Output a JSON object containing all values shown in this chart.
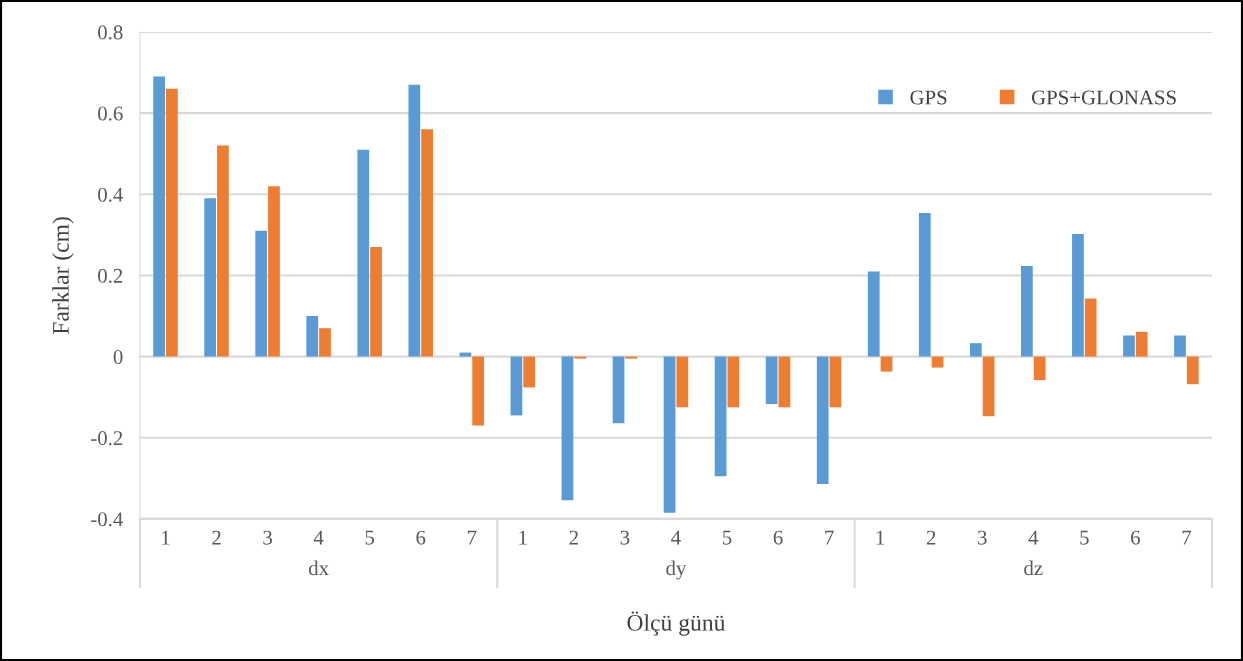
{
  "chart_data": {
    "type": "bar",
    "ylabel": "Farklar (cm)",
    "xlabel": "Ölçü günü",
    "categories": [
      "1",
      "2",
      "3",
      "4",
      "5",
      "6",
      "7",
      "1",
      "2",
      "3",
      "4",
      "5",
      "6",
      "7",
      "1",
      "2",
      "3",
      "4",
      "5",
      "6",
      "7"
    ],
    "annotations": [
      "dx",
      "dy",
      "dz"
    ],
    "series": [
      {
        "name": "GPS",
        "color": "#5b9bd5",
        "values": [
          0.69,
          0.39,
          0.31,
          0.1,
          0.51,
          0.67,
          0.01,
          -0.145,
          -0.354,
          -0.164,
          -0.385,
          -0.295,
          -0.117,
          -0.314,
          0.21,
          0.354,
          0.033,
          0.223,
          0.302,
          0.052,
          0.052
        ]
      },
      {
        "name": "GPS+GLONASS",
        "color": "#ed7d31",
        "values": [
          0.66,
          0.52,
          0.42,
          0.07,
          0.27,
          0.56,
          -0.17,
          -0.076,
          -0.005,
          -0.005,
          -0.125,
          -0.125,
          -0.125,
          -0.125,
          -0.037,
          -0.027,
          -0.147,
          -0.058,
          0.143,
          0.061,
          -0.068
        ]
      }
    ],
    "ylim": [
      -0.4,
      0.8
    ],
    "yticks": [
      -0.4,
      -0.2,
      0,
      0.2,
      0.4,
      0.6,
      0.8
    ],
    "grid": "y",
    "legend": "top right"
  }
}
